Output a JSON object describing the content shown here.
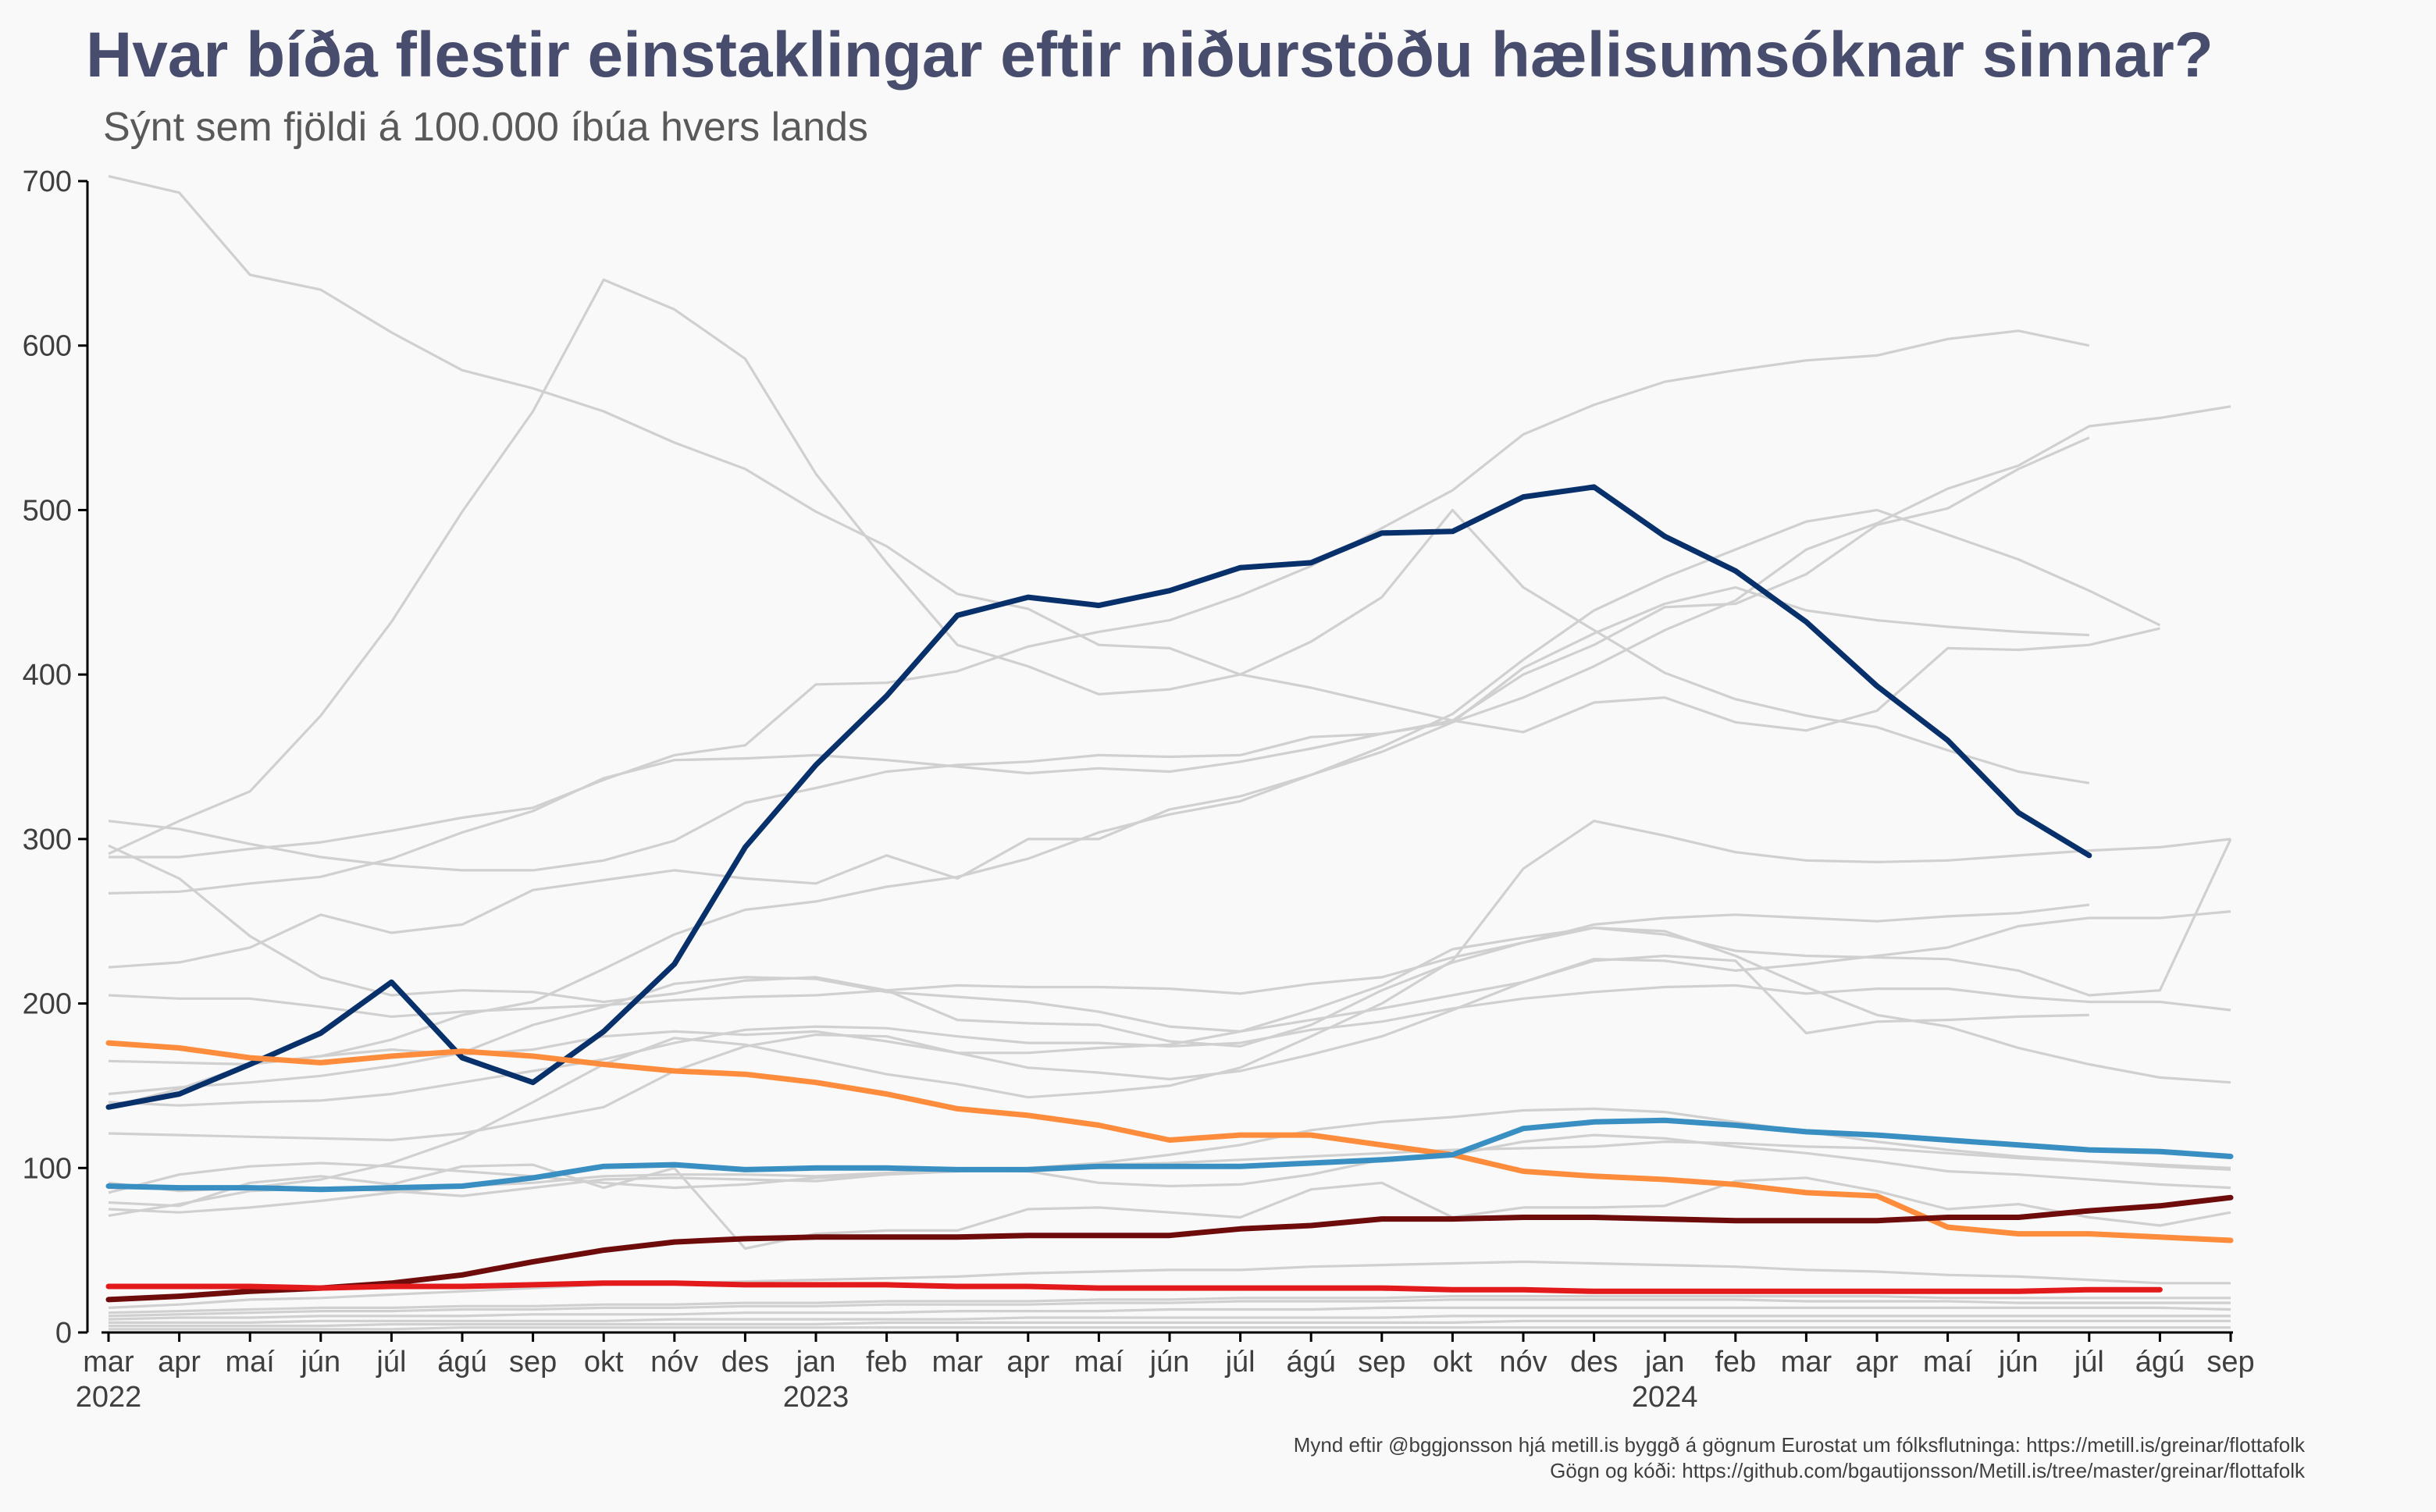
{
  "chart_data": {
    "type": "line",
    "title": "Hvar bíða flestir einstaklingar eftir niðurstöðu hælisumsóknar sinnar?",
    "subtitle": "Sýnt sem fjöldi á 100.000 íbúa hvers lands",
    "caption_lines": [
      "Mynd eftir @bggjonsson hjá metill.is byggð á gögnum Eurostat um fólksflutninga: https://metill.is/greinar/flottafolk",
      "Gögn og kóði: https://github.com/bgautijonsson/Metill.is/tree/master/greinar/flottafolk"
    ],
    "x_labels": [
      "mar",
      "apr",
      "maí",
      "jún",
      "júl",
      "ágú",
      "sep",
      "okt",
      "nóv",
      "des",
      "jan",
      "feb",
      "mar",
      "apr",
      "maí",
      "jún",
      "júl",
      "ágú",
      "sep",
      "okt",
      "nóv",
      "des",
      "jan",
      "feb",
      "mar",
      "apr",
      "maí",
      "jún",
      "júl",
      "ágú",
      "sep"
    ],
    "year_labels": [
      {
        "index": 0,
        "label": "2022"
      },
      {
        "index": 10,
        "label": "2023"
      },
      {
        "index": 22,
        "label": "2024"
      }
    ],
    "ylim": [
      0,
      700
    ],
    "yticks": [
      0,
      100,
      200,
      300,
      400,
      500,
      600,
      700
    ],
    "grid": false,
    "legend": "none",
    "highlight_series": [
      {
        "color": "#08306b",
        "values": [
          137,
          145,
          163,
          182,
          213,
          167,
          152,
          183,
          224,
          295,
          345,
          387,
          436,
          447,
          442,
          451,
          465,
          468,
          486,
          487,
          508,
          514,
          484,
          463,
          432,
          393,
          360,
          316,
          290
        ]
      },
      {
        "color": "#fd8d3c",
        "values": [
          176,
          173,
          167,
          164,
          168,
          171,
          168,
          163,
          159,
          157,
          152,
          145,
          136,
          132,
          126,
          117,
          120,
          120,
          114,
          108,
          98,
          95,
          93,
          90,
          85,
          83,
          64,
          60,
          60,
          58,
          56
        ]
      },
      {
        "color": "#3a8fc2",
        "values": [
          89,
          88,
          88,
          87,
          88,
          89,
          94,
          101,
          102,
          99,
          100,
          100,
          99,
          99,
          101,
          101,
          101,
          103,
          105,
          108,
          124,
          128,
          129,
          126,
          122,
          120,
          117,
          114,
          111,
          110,
          107
        ]
      },
      {
        "color": "#6e0b0b",
        "values": [
          20,
          22,
          25,
          27,
          30,
          35,
          43,
          50,
          55,
          57,
          58,
          58,
          58,
          59,
          59,
          59,
          63,
          65,
          69,
          69,
          70,
          70,
          69,
          68,
          68,
          68,
          70,
          70,
          74,
          77,
          82
        ]
      },
      {
        "color": "#e31a1c",
        "values": [
          28,
          28,
          28,
          27,
          28,
          28,
          29,
          30,
          30,
          29,
          29,
          29,
          28,
          28,
          27,
          27,
          27,
          27,
          27,
          26,
          26,
          25,
          25,
          25,
          25,
          25,
          25,
          25,
          26,
          26
        ]
      }
    ],
    "background_series": [
      {
        "values": [
          703,
          693,
          643,
          634,
          608,
          585,
          574,
          560,
          541,
          525,
          499,
          478,
          449,
          440,
          418,
          416,
          400,
          392,
          382,
          372,
          365,
          383,
          386,
          371,
          366,
          378,
          416,
          415,
          418,
          428
        ]
      },
      {
        "values": [
          291,
          311,
          329,
          375,
          432,
          499,
          560,
          640,
          622,
          592,
          522,
          468,
          418,
          405,
          388,
          391,
          400,
          420,
          447,
          500,
          453,
          427,
          401,
          385,
          375,
          368,
          354,
          341,
          334
        ]
      },
      {
        "values": [
          311,
          306,
          297,
          289,
          284,
          281,
          281,
          287,
          299,
          322,
          331,
          341,
          345,
          347,
          351,
          350,
          351,
          362,
          364,
          371,
          386,
          405,
          427,
          445,
          476,
          492,
          513,
          527,
          551,
          556,
          563
        ]
      },
      {
        "values": [
          296,
          276,
          241,
          216,
          205,
          208,
          207,
          201,
          206,
          214,
          216,
          208,
          190,
          188,
          187,
          177,
          174,
          187,
          208,
          225,
          237,
          246,
          244,
          229,
          210,
          193,
          186,
          173,
          163,
          155,
          152
        ]
      },
      {
        "values": [
          267,
          268,
          273,
          277,
          288,
          304,
          317,
          337,
          348,
          349,
          351,
          348,
          344,
          340,
          343,
          341,
          347,
          355,
          364,
          372,
          400,
          418,
          441,
          443,
          461,
          491,
          501,
          525,
          544
        ]
      },
      {
        "values": [
          289,
          289,
          294,
          298,
          305,
          313,
          319,
          336,
          351,
          357,
          394,
          395,
          402,
          417,
          426,
          433,
          448,
          466,
          489,
          512,
          546,
          564,
          578,
          585,
          591,
          594,
          604,
          609,
          600
        ]
      },
      {
        "values": [
          222,
          225,
          234,
          254,
          243,
          248,
          269,
          275,
          281,
          276,
          273,
          290,
          276,
          300,
          300,
          318,
          326,
          339,
          353,
          371,
          404,
          425,
          443,
          453,
          439,
          433,
          429,
          426,
          424
        ]
      },
      {
        "values": [
          205,
          203,
          203,
          198,
          192,
          195,
          197,
          199,
          202,
          204,
          205,
          208,
          211,
          210,
          210,
          209,
          206,
          212,
          216,
          228,
          237,
          248,
          252,
          254,
          252,
          250,
          253,
          255,
          260
        ]
      },
      {
        "values": [
          165,
          164,
          163,
          168,
          172,
          169,
          172,
          180,
          183,
          181,
          183,
          177,
          170,
          170,
          173,
          175,
          183,
          196,
          211,
          233,
          240,
          246,
          242,
          232,
          229,
          228,
          227,
          220,
          205,
          208,
          300
        ]
      },
      {
        "values": [
          145,
          149,
          152,
          156,
          162,
          170,
          187,
          198,
          212,
          216,
          215,
          207,
          204,
          201,
          195,
          186,
          183,
          190,
          197,
          205,
          213,
          226,
          229,
          226,
          182,
          189,
          190,
          192,
          193
        ]
      },
      {
        "values": [
          140,
          138,
          140,
          141,
          145,
          152,
          159,
          166,
          176,
          184,
          186,
          185,
          180,
          176,
          176,
          174,
          176,
          184,
          189,
          197,
          203,
          207,
          210,
          211,
          206,
          209,
          209,
          204,
          201,
          201,
          196
        ]
      },
      {
        "values": [
          137,
          148,
          163,
          168,
          178,
          193,
          201,
          221,
          242,
          257,
          262,
          271,
          277,
          288,
          304,
          315,
          323,
          339,
          356,
          376,
          409,
          439,
          459,
          476,
          493,
          500,
          485,
          470,
          451,
          430
        ]
      },
      {
        "values": [
          121,
          120,
          119,
          118,
          117,
          121,
          129,
          137,
          159,
          174,
          181,
          180,
          170,
          161,
          158,
          154,
          159,
          169,
          180,
          196,
          213,
          227,
          226,
          220,
          224,
          229,
          234,
          247,
          252,
          252,
          256
        ]
      },
      {
        "values": [
          91,
          86,
          88,
          93,
          103,
          118,
          140,
          163,
          179,
          175,
          166,
          157,
          151,
          143,
          146,
          150,
          161,
          180,
          200,
          226,
          282,
          311,
          302,
          292,
          287,
          286,
          287,
          290,
          293,
          295,
          300
        ]
      },
      {
        "values": [
          85,
          96,
          101,
          103,
          101,
          98,
          95,
          91,
          88,
          90,
          94,
          96,
          99,
          98,
          91,
          89,
          90,
          96,
          105,
          108,
          116,
          120,
          118,
          113,
          109,
          104,
          98,
          96,
          93,
          90,
          88
        ]
      },
      {
        "values": [
          79,
          77,
          91,
          95,
          90,
          101,
          102,
          88,
          100,
          51,
          60,
          62,
          62,
          75,
          76,
          73,
          70,
          87,
          91,
          70,
          76,
          76,
          77,
          92,
          94,
          86,
          75,
          78,
          70,
          65,
          73
        ]
      },
      {
        "values": [
          75,
          73,
          76,
          80,
          85,
          89,
          91,
          95,
          96,
          96,
          95,
          97,
          99,
          99,
          102,
          103,
          105,
          107,
          109,
          111,
          112,
          113,
          116,
          115,
          113,
          112,
          109,
          106,
          104,
          102,
          100
        ]
      },
      {
        "values": [
          71,
          78,
          86,
          88,
          86,
          83,
          88,
          93,
          94,
          93,
          92,
          96,
          98,
          100,
          103,
          108,
          114,
          123,
          128,
          131,
          135,
          136,
          134,
          128,
          122,
          116,
          111,
          107,
          104,
          101,
          99
        ]
      },
      {
        "values": [
          15,
          17,
          20,
          21,
          23,
          25,
          27,
          29,
          30,
          31,
          32,
          33,
          34,
          36,
          37,
          38,
          38,
          40,
          41,
          42,
          43,
          42,
          41,
          40,
          38,
          37,
          35,
          34,
          32,
          30,
          30
        ]
      },
      {
        "values": [
          12,
          13,
          14,
          15,
          15,
          16,
          16,
          17,
          17,
          18,
          18,
          19,
          19,
          19,
          20,
          20,
          21,
          21,
          21,
          22,
          22,
          22,
          22,
          22,
          22,
          22,
          21,
          21,
          21,
          21,
          21
        ]
      },
      {
        "values": [
          8,
          9,
          9,
          10,
          10,
          10,
          11,
          11,
          11,
          12,
          12,
          12,
          13,
          13,
          13,
          14,
          14,
          14,
          15,
          15,
          15,
          15,
          15,
          15,
          15,
          15,
          15,
          15,
          15,
          15,
          14
        ]
      },
      {
        "values": [
          6,
          6,
          6,
          7,
          7,
          7,
          7,
          7,
          8,
          8,
          8,
          8,
          8,
          9,
          9,
          9,
          9,
          9,
          9,
          10,
          10,
          10,
          10,
          10,
          10,
          10,
          10,
          10,
          10,
          10,
          10
        ]
      },
      {
        "values": [
          4,
          4,
          4,
          4,
          5,
          5,
          5,
          5,
          5,
          5,
          5,
          6,
          6,
          6,
          6,
          6,
          6,
          6,
          6,
          6,
          7,
          7,
          7,
          7,
          7,
          7,
          7,
          7,
          7,
          7,
          7
        ]
      },
      {
        "values": [
          2,
          2,
          2,
          2,
          2,
          3,
          3,
          3,
          3,
          3,
          3,
          3,
          3,
          3,
          3,
          3,
          3,
          3,
          3,
          3,
          3,
          3,
          3,
          3,
          3,
          3,
          3,
          3,
          3,
          3,
          3
        ]
      },
      {
        "values": [
          10,
          11,
          12,
          13,
          13,
          14,
          14,
          15,
          15,
          16,
          16,
          17,
          17,
          17,
          18,
          18,
          19,
          19,
          19,
          20,
          20,
          20,
          20,
          20,
          19,
          19,
          19,
          18,
          18,
          18,
          18
        ]
      }
    ],
    "colors": {
      "background": "#f9f9f9",
      "muted_line": "#d0d0d0",
      "axis": "#000000"
    }
  }
}
